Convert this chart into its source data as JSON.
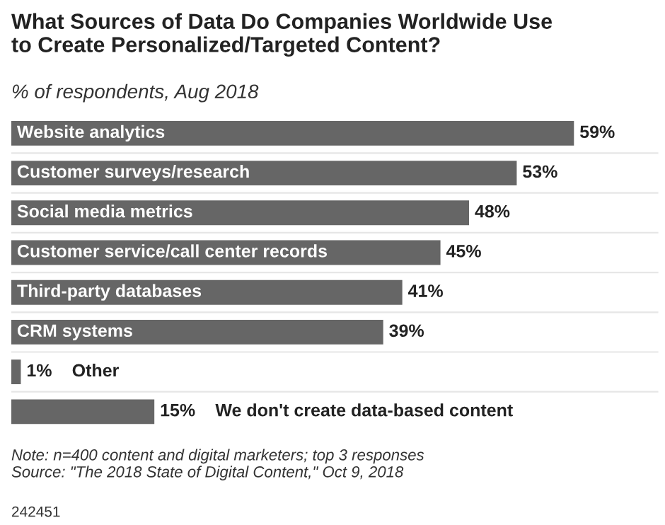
{
  "chart_data": {
    "type": "bar",
    "orientation": "horizontal",
    "title": "What Sources of Data Do Companies Worldwide Use\nto Create Personalized/Targeted Content?",
    "subtitle": "% of respondents, Aug 2018",
    "categories": [
      "Website analytics",
      "Customer surveys/research",
      "Social media metrics",
      "Customer service/call center records",
      "Third-party databases",
      "CRM systems",
      "Other",
      "We don't create data-based content"
    ],
    "values": [
      59,
      53,
      48,
      45,
      41,
      39,
      1,
      15
    ],
    "value_labels": [
      "59%",
      "53%",
      "48%",
      "45%",
      "41%",
      "39%",
      "1%",
      "15%"
    ],
    "color": "#666666",
    "tick_labels": false,
    "annotations": [
      "Note: n=400 content and digital marketers; top 3 responses\nSource: \"The 2018 State of Digital Content,\" Oct 9, 2018",
      "242451"
    ]
  }
}
